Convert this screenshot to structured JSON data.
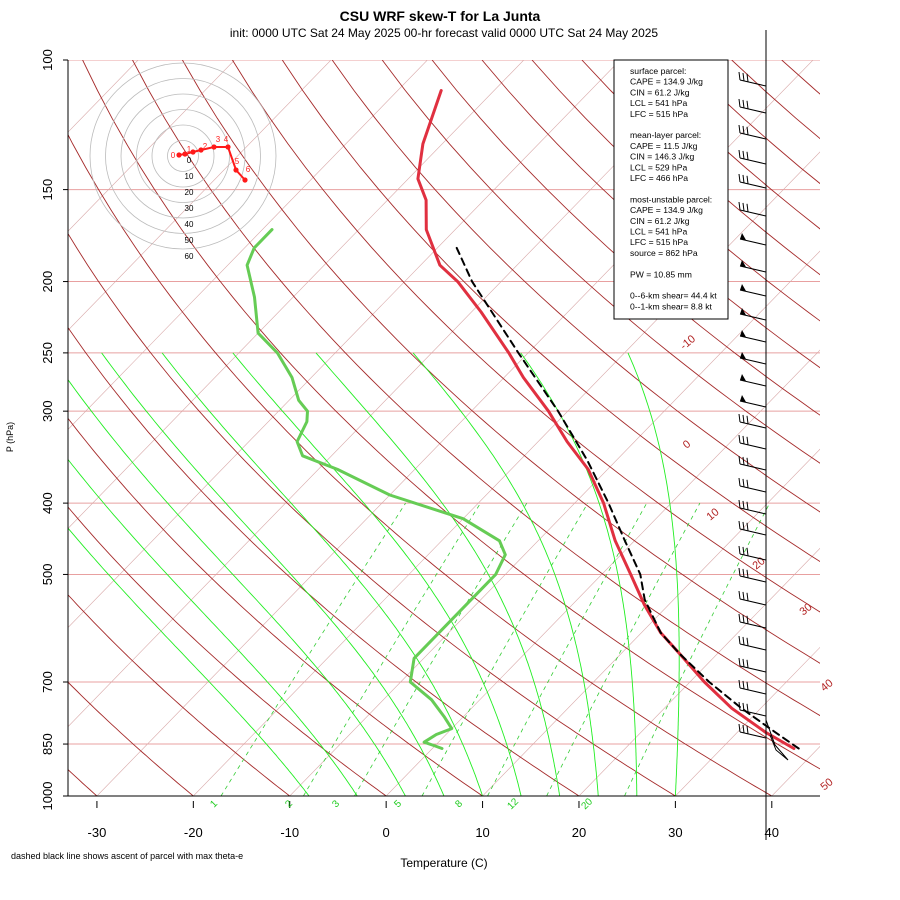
{
  "header": {
    "title": "CSU WRF skew-T for La Junta",
    "subtitle": "init: 0000 UTC Sat 24 May 2025    00-hr forecast valid 0000 UTC Sat 24 May 2025"
  },
  "axes": {
    "ylabel": "P (hPa)",
    "xlabel": "Temperature (C)",
    "pressure_ticks": [
      "100",
      "150",
      "200",
      "250",
      "300",
      "400",
      "500",
      "700",
      "850",
      "1000"
    ],
    "temp_ticks": [
      "-30",
      "-20",
      "-10",
      "0",
      "10",
      "20",
      "30",
      "40"
    ]
  },
  "footnote": "dashed black line shows ascent of parcel with max theta-e",
  "info_box": {
    "lines": [
      "surface parcel:",
      "CAPE = 134.9 J/kg",
      "CIN = 61.2 J/kg",
      "LCL = 541 hPa",
      "LFC = 515 hPa",
      "",
      "mean-layer parcel:",
      "CAPE = 11.5 J/kg",
      "CIN = 146.3 J/kg",
      "LCL = 529 hPa",
      "LFC = 466 hPa",
      "",
      "most-unstable parcel:",
      "CAPE = 134.9 J/kg",
      "CIN = 61.2 J/kg",
      "LCL = 541 hPa",
      "LFC = 515 hPa",
      "source = 862 hPa",
      "",
      "PW =  10.85 mm",
      "",
      "0--6-km shear= 44.4 kt",
      "0--1-km shear= 8.8 kt"
    ]
  },
  "isotherm_labels": [
    "-10",
    "0",
    "10",
    "20",
    "30",
    "40",
    "50"
  ],
  "mixing_ratio_labels": [
    "1",
    "2",
    "3",
    "5",
    "8",
    "12",
    "20"
  ],
  "hodograph": {
    "ring_labels": [
      "0",
      "10",
      "20",
      "30",
      "40",
      "50",
      "60"
    ],
    "height_labels": [
      "0",
      "1",
      "2",
      "3",
      "4",
      "5",
      "6"
    ]
  },
  "colors": {
    "temperature": "#e03040",
    "dewpoint": "#66cc55",
    "parcel": "#000000",
    "isotherm": "#a52a2a",
    "isobar": "#e8a0a0",
    "mixing_ratio": "#33cc33",
    "hodograph": "#ff1a1a"
  },
  "chart_data": {
    "type": "line",
    "title": "CSU WRF skew-T for La Junta",
    "xlabel": "Temperature (C)",
    "ylabel": "P (hPa)",
    "xlim": [
      -33,
      45
    ],
    "ylim": [
      1000,
      100
    ],
    "y_scale": "log",
    "grid": true,
    "series": [
      {
        "key": "temperature",
        "points": [
          [
            862,
            37.5
          ],
          [
            820,
            33
          ],
          [
            760,
            27
          ],
          [
            700,
            21.5
          ],
          [
            640,
            16
          ],
          [
            600,
            12
          ],
          [
            550,
            7.5
          ],
          [
            500,
            3
          ],
          [
            450,
            -2
          ],
          [
            400,
            -7
          ],
          [
            360,
            -12
          ],
          [
            330,
            -17
          ],
          [
            300,
            -22
          ],
          [
            270,
            -28
          ],
          [
            250,
            -32
          ],
          [
            220,
            -39
          ],
          [
            200,
            -44.5
          ],
          [
            190,
            -48
          ],
          [
            170,
            -53
          ],
          [
            155,
            -56
          ],
          [
            145,
            -59
          ],
          [
            130,
            -62
          ],
          [
            110,
            -65.5
          ]
        ]
      },
      {
        "key": "dewpoint",
        "points": [
          [
            862,
            1
          ],
          [
            855,
            0
          ],
          [
            845,
            -1.5
          ],
          [
            825,
            -1
          ],
          [
            810,
            0
          ],
          [
            780,
            -2
          ],
          [
            740,
            -5
          ],
          [
            700,
            -9
          ],
          [
            650,
            -11
          ],
          [
            600,
            -11
          ],
          [
            550,
            -11
          ],
          [
            500,
            -11
          ],
          [
            470,
            -12
          ],
          [
            450,
            -14
          ],
          [
            420,
            -20
          ],
          [
            390,
            -30
          ],
          [
            360,
            -38
          ],
          [
            345,
            -43
          ],
          [
            330,
            -45
          ],
          [
            310,
            -46
          ],
          [
            300,
            -47
          ],
          [
            290,
            -49
          ],
          [
            270,
            -52
          ],
          [
            250,
            -56
          ],
          [
            235,
            -60
          ],
          [
            210,
            -64
          ],
          [
            190,
            -68
          ],
          [
            180,
            -69
          ],
          [
            170,
            -69
          ]
        ]
      },
      {
        "key": "parcel",
        "points": [
          [
            862,
            38
          ],
          [
            820,
            34
          ],
          [
            760,
            28
          ],
          [
            700,
            22
          ],
          [
            640,
            16
          ],
          [
            600,
            12
          ],
          [
            541,
            7
          ],
          [
            500,
            4
          ],
          [
            450,
            -1
          ],
          [
            400,
            -6.5
          ],
          [
            350,
            -13
          ],
          [
            300,
            -21
          ],
          [
            250,
            -31
          ],
          [
            200,
            -43
          ],
          [
            180,
            -48
          ]
        ]
      }
    ]
  }
}
